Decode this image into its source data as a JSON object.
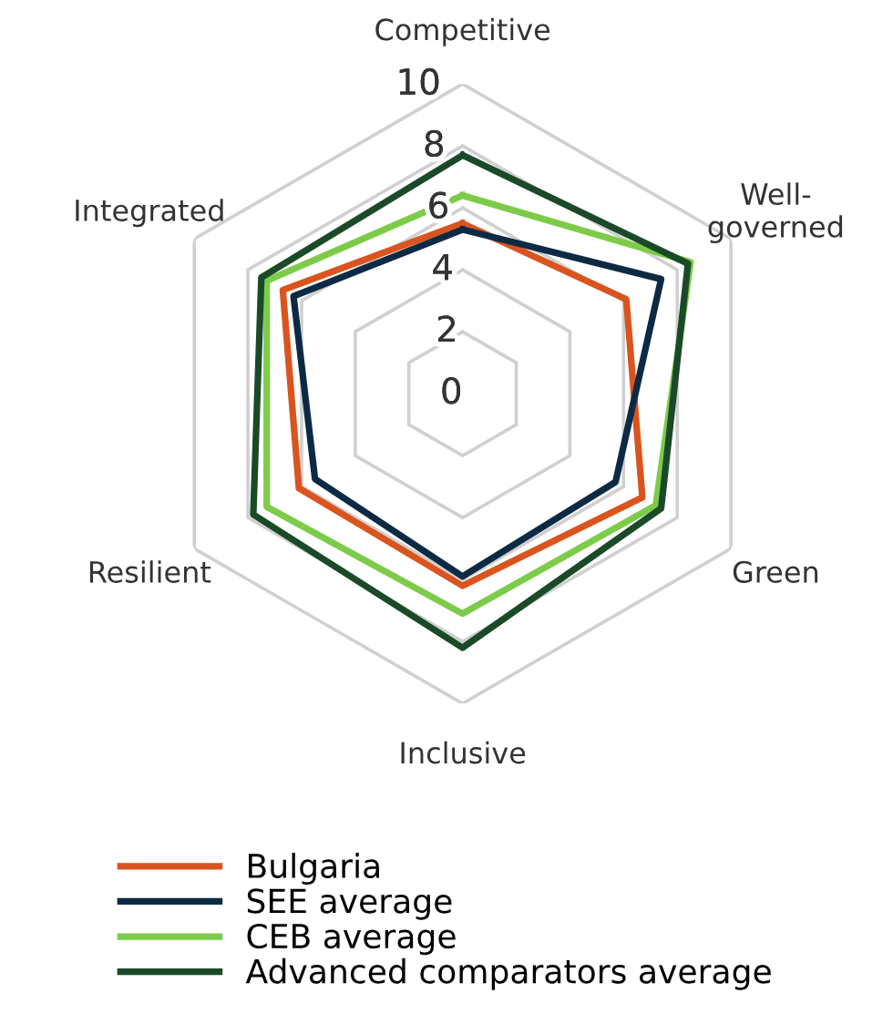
{
  "chart_data": {
    "type": "radar",
    "categories": [
      "Competitive",
      "Well-\ngoverned",
      "Green",
      "Inclusive",
      "Resilient",
      "Integrated"
    ],
    "ylim": [
      0,
      10
    ],
    "yticks": [
      0,
      2,
      4,
      6,
      8,
      10
    ],
    "grid": true,
    "legend": "bottom",
    "series": [
      {
        "name": "Bulgaria",
        "color": "#d9541e",
        "values": [
          5.5,
          6.1,
          6.7,
          6.2,
          6.1,
          6.7
        ]
      },
      {
        "name": "SEE average",
        "color": "#0d2a45",
        "values": [
          5.3,
          7.4,
          5.7,
          5.9,
          5.5,
          6.3
        ]
      },
      {
        "name": "CEB average",
        "color": "#7ccc4a",
        "values": [
          6.4,
          8.5,
          7.2,
          7.1,
          7.3,
          7.3
        ]
      },
      {
        "name": "Advanced comparators average",
        "color": "#1a4a27",
        "values": [
          7.7,
          8.4,
          7.4,
          8.2,
          7.8,
          7.5
        ]
      }
    ]
  }
}
